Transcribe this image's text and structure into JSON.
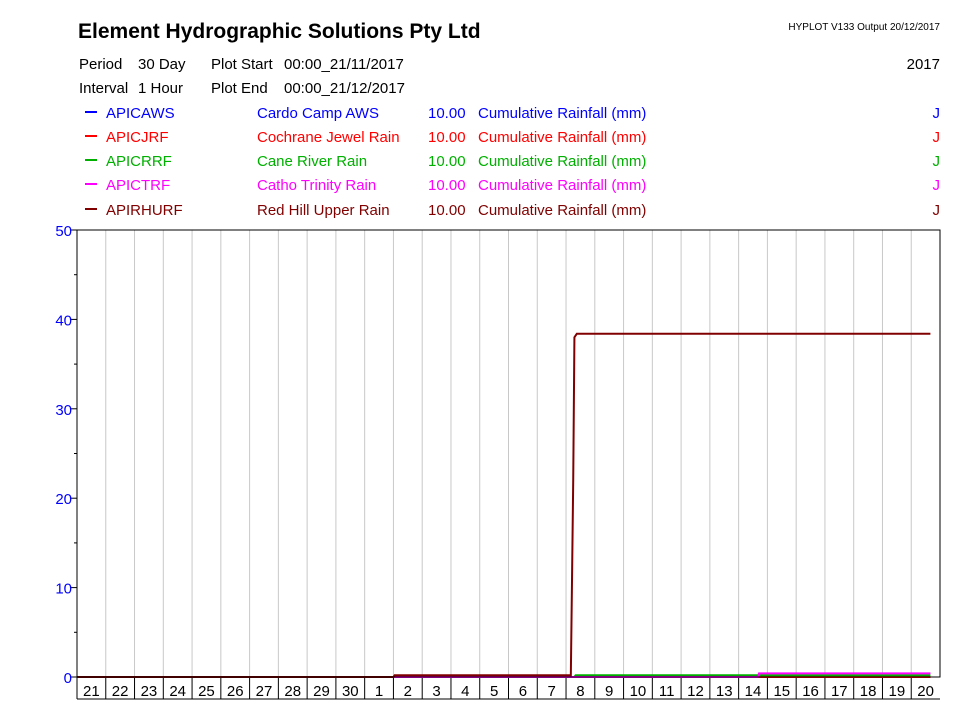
{
  "header": {
    "company": "Element Hydrographic Solutions Pty Ltd",
    "program": "HYPLOT V133  Output 20/12/2017",
    "year": "2017",
    "period_label": "Period",
    "period_value": "30 Day",
    "interval_label": "Interval",
    "interval_value": "1 Hour",
    "plot_start_label": "Plot Start",
    "plot_start_value": "00:00_21/11/2017",
    "plot_end_label": "Plot End",
    "plot_end_value": "00:00_21/12/2017"
  },
  "legend": [
    {
      "code": "APICAWS",
      "site": "Cardo Camp AWS",
      "scale": "10.00",
      "variable": "Cumulative Rainfall (mm)",
      "flag": "J",
      "color": "#0000ff"
    },
    {
      "code": "APICJRF",
      "site": "Cochrane Jewel Rain",
      "scale": "10.00",
      "variable": "Cumulative Rainfall (mm)",
      "flag": "J",
      "color": "#ff0000"
    },
    {
      "code": "APICRRF",
      "site": "Cane River Rain",
      "scale": "10.00",
      "variable": "Cumulative Rainfall (mm)",
      "flag": "J",
      "color": "#00b000"
    },
    {
      "code": "APICTRF",
      "site": "Catho Trinity Rain",
      "scale": "10.00",
      "variable": "Cumulative Rainfall (mm)",
      "flag": "J",
      "color": "#ff00ff"
    },
    {
      "code": "APIRHURF",
      "site": "Red Hill Upper Rain",
      "scale": "10.00",
      "variable": "Cumulative Rainfall (mm)",
      "flag": "J",
      "color": "#800000"
    }
  ],
  "chart_data": {
    "type": "line",
    "x_unit": "day",
    "x_start": "2017-11-21 00:00",
    "x_end": "2017-12-21 00:00",
    "x_tick_labels": [
      "21",
      "22",
      "23",
      "24",
      "25",
      "26",
      "27",
      "28",
      "29",
      "30",
      "1",
      "2",
      "3",
      "4",
      "5",
      "6",
      "7",
      "8",
      "9",
      "10",
      "11",
      "12",
      "13",
      "14",
      "15",
      "16",
      "17",
      "18",
      "19",
      "20"
    ],
    "ylim": [
      0,
      50
    ],
    "y_ticks": [
      0,
      10,
      20,
      30,
      40,
      50
    ],
    "grid": true,
    "series": [
      {
        "name": "APICAWS",
        "color": "#0000ff",
        "points": [
          [
            "2017-11-21 00:00",
            0
          ],
          [
            "2017-12-20 16:00",
            0
          ]
        ]
      },
      {
        "name": "APICJRF",
        "color": "#ff0000",
        "points": [
          [
            "2017-11-21 00:00",
            0
          ],
          [
            "2017-12-20 16:00",
            0
          ]
        ]
      },
      {
        "name": "APICRRF",
        "color": "#00b000",
        "points": [
          [
            "2017-11-21 00:00",
            0
          ],
          [
            "2017-12-08 07:00",
            0
          ],
          [
            "2017-12-08 08:00",
            0.2
          ],
          [
            "2017-12-20 16:00",
            0.2
          ]
        ]
      },
      {
        "name": "APICTRF",
        "color": "#ff00ff",
        "points": [
          [
            "2017-11-21 00:00",
            0
          ],
          [
            "2017-12-14 16:00",
            0
          ],
          [
            "2017-12-14 17:00",
            0.4
          ],
          [
            "2017-12-20 16:00",
            0.4
          ]
        ]
      },
      {
        "name": "APIRHURF",
        "color": "#800000",
        "points": [
          [
            "2017-11-21 00:00",
            0
          ],
          [
            "2017-12-02 00:00",
            0
          ],
          [
            "2017-12-02 01:00",
            0.2
          ],
          [
            "2017-12-08 04:00",
            0.2
          ],
          [
            "2017-12-08 05:00",
            11.0
          ],
          [
            "2017-12-08 06:00",
            22.0
          ],
          [
            "2017-12-08 07:00",
            38.0
          ],
          [
            "2017-12-08 09:00",
            38.4
          ],
          [
            "2017-12-20 16:00",
            38.4
          ]
        ]
      }
    ]
  }
}
